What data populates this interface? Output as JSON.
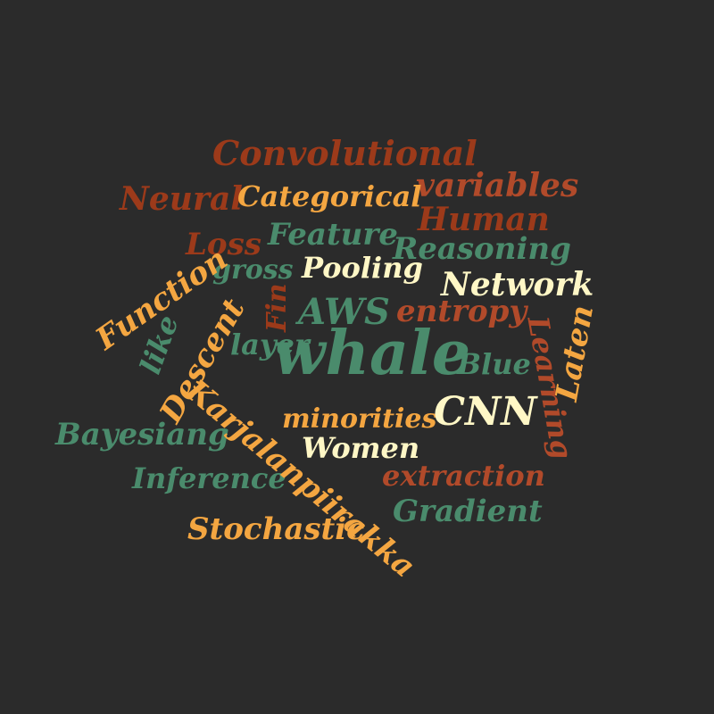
{
  "background": "#2b2b2b",
  "palette": {
    "green": "#4a8b6c",
    "orange": "#f4a641",
    "rust": "#9c3a1a",
    "brick": "#b14a2a",
    "cream": "#fff7c6"
  },
  "words": {
    "convolutional": "Convolutional",
    "variables": "variables",
    "neural": "Neural",
    "categorical": "Categorical",
    "human": "Human",
    "loss": "Loss",
    "feature": "Feature",
    "reasoning": "Reasoning",
    "function": "Function",
    "gross": "gross",
    "pooling": "Pooling",
    "network": "Network",
    "fin": "Fin",
    "aws": "AWS",
    "entropy": "entropy",
    "descent": "Descent",
    "like": "like",
    "layer": "layer",
    "whale": "whale",
    "blue": "Blue",
    "learning": "Learning",
    "laten": "Laten",
    "karjalanpiirakka": "Karjalanpiirakka",
    "minorities": "minorities",
    "cnn": "CNN",
    "bayesiang": "Bayesiang",
    "women": "Women",
    "inference": "Inference",
    "extraction": "extraction",
    "gradient": "Gradient",
    "stochastic": "Stochastic"
  }
}
